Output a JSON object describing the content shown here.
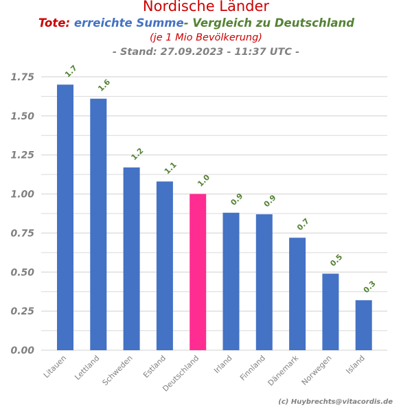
{
  "title": {
    "line1": "Nordische Länder",
    "line2_part1": "Tote:",
    "line2_part2": "erreichte Summe",
    "line2_part3": "- Vergleich zu Deutschland",
    "line3": "(je 1 Mio Bevölkerung)",
    "line4": "- Stand: 27.09.2023 - 11:37 UTC -"
  },
  "credit": "(c) Huybrechts@vitacordis.de",
  "colors": {
    "title_red": "#cc0000",
    "title_blue": "#4472c4",
    "title_green": "#548235",
    "bar": "#4472c4",
    "bar_highlight": "#ff2d91",
    "label_green": "#548235",
    "grid": "#d9d9d9",
    "axis_text": "#808080"
  },
  "chart_data": {
    "type": "bar",
    "categories": [
      "Litauen",
      "Lettland",
      "Schweden",
      "Estland",
      "Deutschland",
      "Irland",
      "Finnland",
      "Dänemark",
      "Norwegen",
      "Island"
    ],
    "values": [
      1.7,
      1.61,
      1.17,
      1.08,
      1.0,
      0.88,
      0.87,
      0.72,
      0.49,
      0.32
    ],
    "data_labels": [
      "1.7",
      "1.6",
      "1.2",
      "1.1",
      "1.0",
      "0.9",
      "0.9",
      "0.7",
      "0.5",
      "0.3"
    ],
    "highlight_category": "Deutschland",
    "y_ticks": [
      0.0,
      0.25,
      0.5,
      0.75,
      1.0,
      1.25,
      1.5,
      1.75
    ],
    "y_tick_labels": [
      "0.00",
      "0.25",
      "0.50",
      "0.75",
      "1.00",
      "1.25",
      "1.50",
      "1.75"
    ],
    "ylim": [
      0,
      1.8
    ],
    "grid": true,
    "legend": "none"
  }
}
